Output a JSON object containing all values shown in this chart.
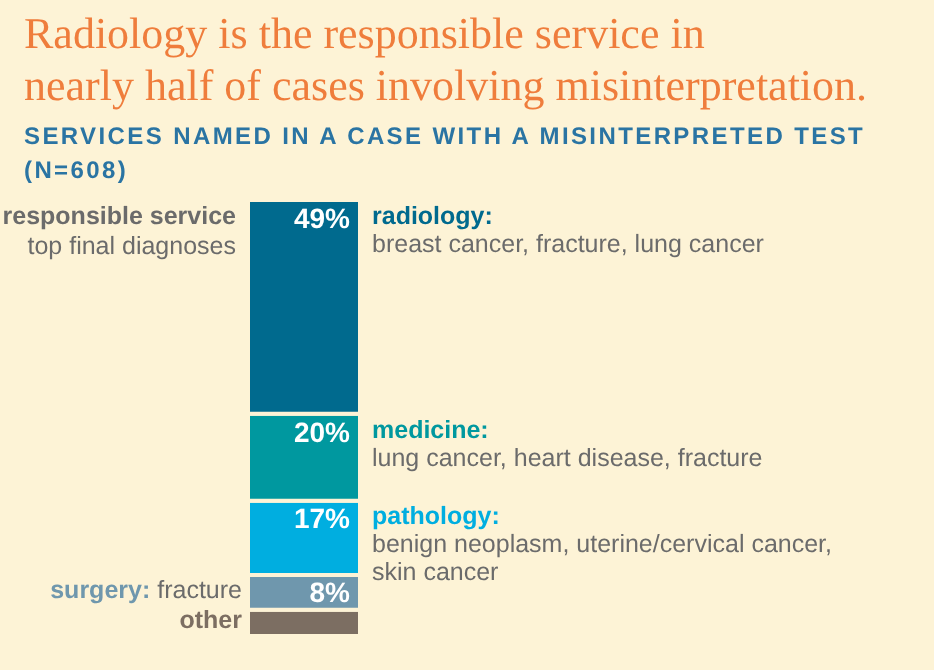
{
  "chart_data": {
    "type": "bar",
    "stacked": true,
    "title": "Radiology is the responsible service in\nnearly half of cases involving misinterpretation.",
    "subtitle": "SERVICES NAMED IN A CASE WITH A MISINTERPRETED TEST\n(N=608)",
    "categories": [
      null
    ],
    "series": [
      {
        "name": "other",
        "color": "#7c6e62",
        "values": [
          6
        ],
        "value_labels": [
          null
        ]
      },
      {
        "name": "surgery:",
        "color": "#6f97ad",
        "values": [
          8
        ],
        "value_labels": [
          "8%"
        ]
      },
      {
        "name": "pathology:",
        "color": "#00aee0",
        "values": [
          17
        ],
        "value_labels": [
          "17%"
        ]
      },
      {
        "name": "medicine:",
        "color": "#00989f",
        "values": [
          20
        ],
        "value_labels": [
          "20%"
        ]
      },
      {
        "name": "radiology:",
        "color": "#006a8e",
        "values": [
          49
        ],
        "value_labels": [
          "49%"
        ]
      }
    ],
    "annotations": [
      "responsible service",
      "top final diagnoses",
      "breast cancer, fracture, lung cancer",
      "lung cancer, heart disease, fracture",
      "benign neoplasm, uterine/cervical cancer, skin cancer",
      "fracture"
    ]
  }
}
